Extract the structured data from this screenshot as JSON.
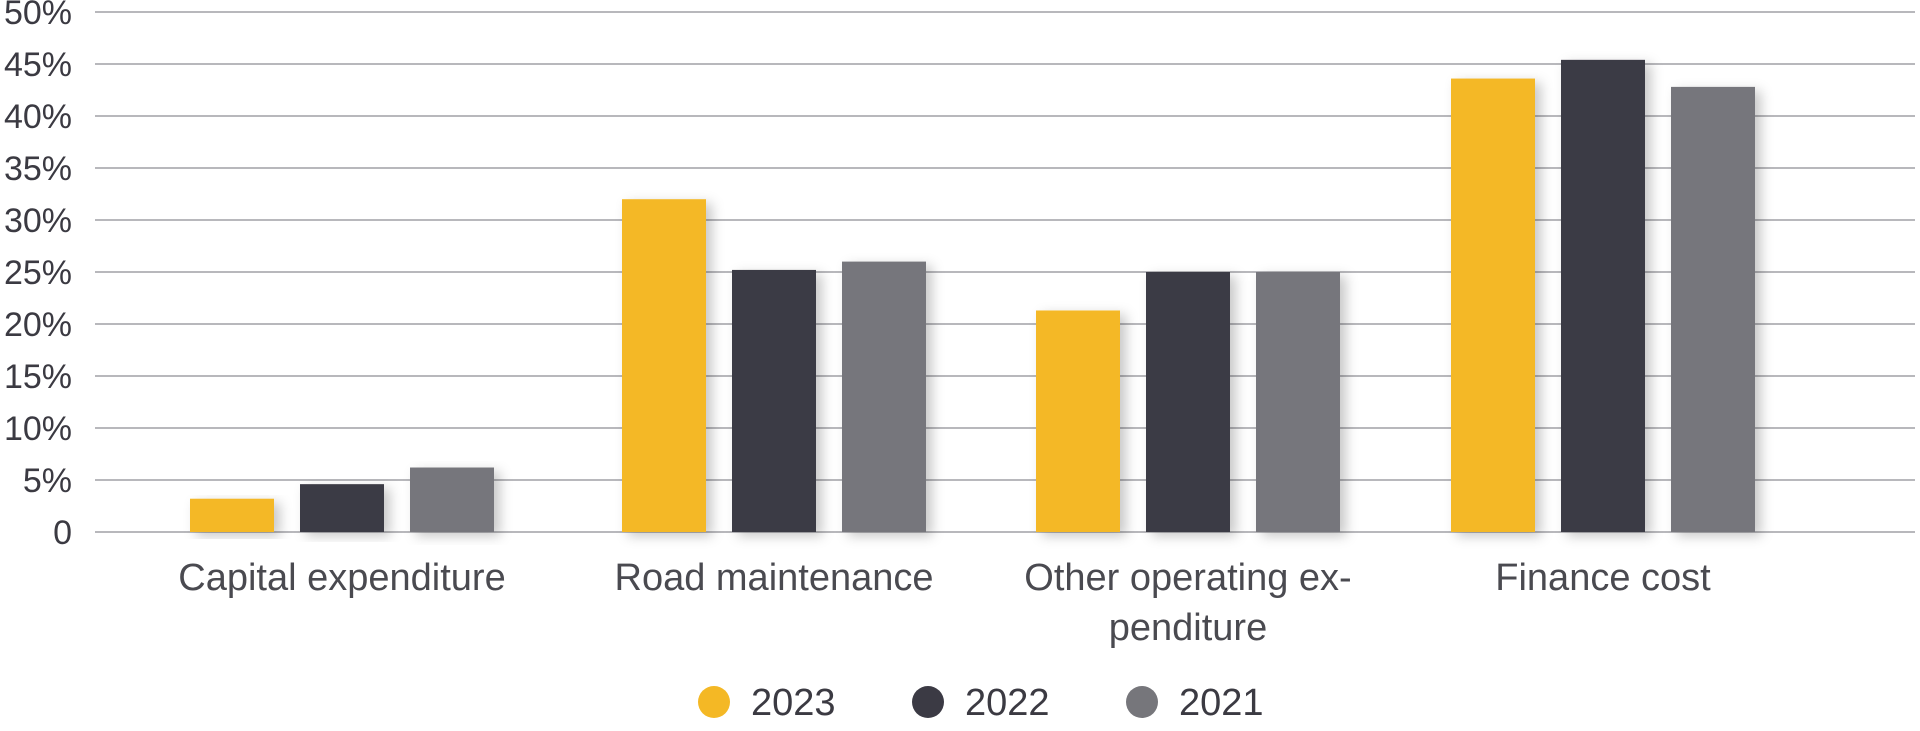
{
  "chart_data": {
    "type": "bar",
    "title": "",
    "xlabel": "",
    "ylabel": "",
    "categories": [
      [
        "Capital expenditure"
      ],
      [
        "Road maintenance"
      ],
      [
        "Other operating ex-",
        "penditure"
      ],
      [
        "Finance cost"
      ]
    ],
    "category_names": [
      "Capital expenditure",
      "Road maintenance",
      "Other operating expenditure",
      "Finance cost"
    ],
    "series": [
      {
        "name": "2023",
        "color": "#f4b825",
        "values": [
          3.2,
          32.0,
          21.3,
          43.6
        ]
      },
      {
        "name": "2022",
        "color": "#3b3a44",
        "values": [
          4.6,
          25.2,
          25.0,
          45.4
        ]
      },
      {
        "name": "2021",
        "color": "#76767b",
        "values": [
          6.2,
          26.0,
          25.0,
          42.8
        ]
      }
    ],
    "ylim": [
      0,
      50
    ],
    "yticks": [
      0,
      5,
      10,
      15,
      20,
      25,
      30,
      35,
      40,
      45,
      50
    ],
    "ytick_labels": [
      "0",
      "5%",
      "10%",
      "15%",
      "20%",
      "25%",
      "30%",
      "35%",
      "40%",
      "45%",
      "50%"
    ],
    "grid": true,
    "legend_position": "bottom-center"
  }
}
